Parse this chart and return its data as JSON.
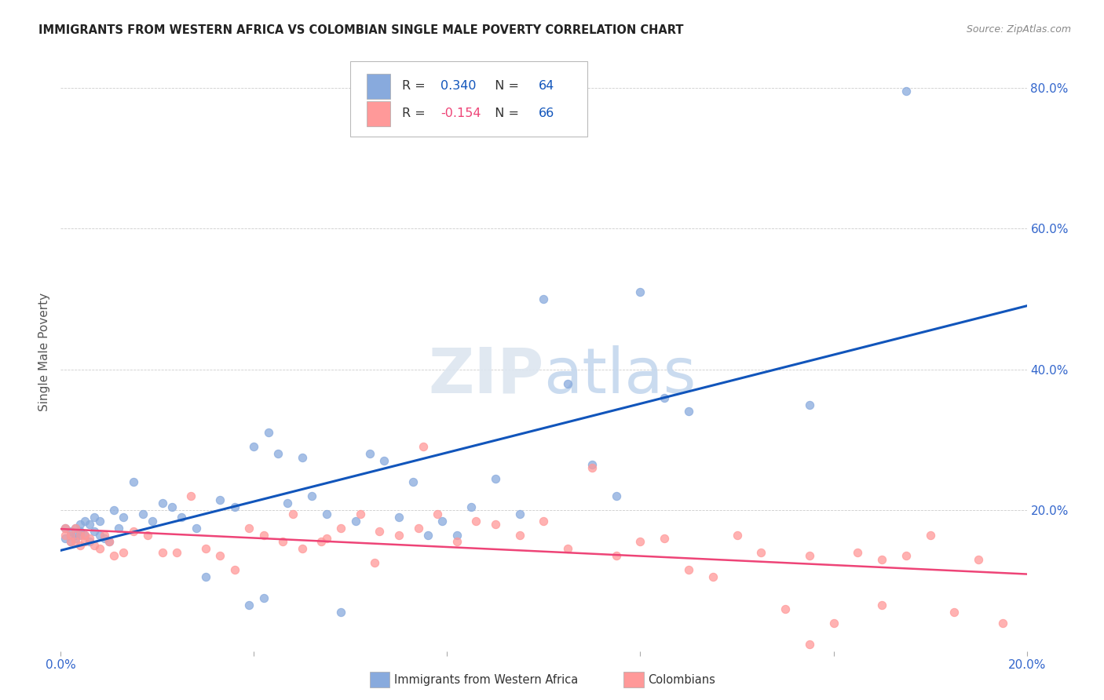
{
  "title": "IMMIGRANTS FROM WESTERN AFRICA VS COLOMBIAN SINGLE MALE POVERTY CORRELATION CHART",
  "source": "Source: ZipAtlas.com",
  "ylabel": "Single Male Poverty",
  "xlim": [
    0.0,
    0.2
  ],
  "ylim": [
    0.0,
    0.85
  ],
  "xticks": [
    0.0,
    0.04,
    0.08,
    0.12,
    0.16,
    0.2
  ],
  "yticks": [
    0.0,
    0.2,
    0.4,
    0.6,
    0.8
  ],
  "ytick_labels_right": [
    "",
    "20.0%",
    "40.0%",
    "60.0%",
    "80.0%"
  ],
  "xtick_labels": [
    "0.0%",
    "",
    "",
    "",
    "",
    "20.0%"
  ],
  "blue_R": 0.34,
  "blue_N": 64,
  "pink_R": -0.154,
  "pink_N": 66,
  "blue_color": "#88AADD",
  "pink_color": "#FF9999",
  "blue_line_color": "#1155BB",
  "pink_line_color": "#EE4477",
  "background_color": "#FFFFFF",
  "blue_x": [
    0.001,
    0.001,
    0.002,
    0.002,
    0.002,
    0.003,
    0.003,
    0.003,
    0.004,
    0.004,
    0.004,
    0.005,
    0.005,
    0.006,
    0.006,
    0.007,
    0.007,
    0.008,
    0.008,
    0.009,
    0.01,
    0.011,
    0.012,
    0.013,
    0.015,
    0.017,
    0.019,
    0.021,
    0.023,
    0.025,
    0.028,
    0.03,
    0.033,
    0.036,
    0.039,
    0.042,
    0.045,
    0.047,
    0.05,
    0.052,
    0.055,
    0.058,
    0.061,
    0.064,
    0.067,
    0.07,
    0.073,
    0.076,
    0.079,
    0.082,
    0.085,
    0.09,
    0.095,
    0.1,
    0.105,
    0.11,
    0.115,
    0.12,
    0.125,
    0.13,
    0.04,
    0.043,
    0.155,
    0.175
  ],
  "blue_y": [
    0.16,
    0.175,
    0.165,
    0.17,
    0.155,
    0.175,
    0.165,
    0.16,
    0.18,
    0.17,
    0.165,
    0.185,
    0.165,
    0.18,
    0.155,
    0.19,
    0.17,
    0.165,
    0.185,
    0.16,
    0.155,
    0.2,
    0.175,
    0.19,
    0.24,
    0.195,
    0.185,
    0.21,
    0.205,
    0.19,
    0.175,
    0.105,
    0.215,
    0.205,
    0.065,
    0.075,
    0.28,
    0.21,
    0.275,
    0.22,
    0.195,
    0.055,
    0.185,
    0.28,
    0.27,
    0.19,
    0.24,
    0.165,
    0.185,
    0.165,
    0.205,
    0.245,
    0.195,
    0.5,
    0.38,
    0.265,
    0.22,
    0.51,
    0.36,
    0.34,
    0.29,
    0.31,
    0.35,
    0.795
  ],
  "pink_x": [
    0.001,
    0.001,
    0.002,
    0.002,
    0.003,
    0.003,
    0.004,
    0.004,
    0.005,
    0.005,
    0.006,
    0.007,
    0.008,
    0.009,
    0.01,
    0.011,
    0.013,
    0.015,
    0.018,
    0.021,
    0.024,
    0.027,
    0.03,
    0.033,
    0.036,
    0.039,
    0.042,
    0.046,
    0.05,
    0.054,
    0.058,
    0.062,
    0.066,
    0.07,
    0.074,
    0.078,
    0.082,
    0.086,
    0.09,
    0.095,
    0.1,
    0.105,
    0.11,
    0.115,
    0.12,
    0.125,
    0.13,
    0.135,
    0.14,
    0.145,
    0.15,
    0.155,
    0.16,
    0.165,
    0.17,
    0.175,
    0.18,
    0.185,
    0.19,
    0.195,
    0.048,
    0.055,
    0.065,
    0.075,
    0.155,
    0.17
  ],
  "pink_y": [
    0.165,
    0.175,
    0.155,
    0.165,
    0.175,
    0.155,
    0.15,
    0.165,
    0.155,
    0.165,
    0.16,
    0.15,
    0.145,
    0.165,
    0.155,
    0.135,
    0.14,
    0.17,
    0.165,
    0.14,
    0.14,
    0.22,
    0.145,
    0.135,
    0.115,
    0.175,
    0.165,
    0.155,
    0.145,
    0.155,
    0.175,
    0.195,
    0.17,
    0.165,
    0.175,
    0.195,
    0.155,
    0.185,
    0.18,
    0.165,
    0.185,
    0.145,
    0.26,
    0.135,
    0.155,
    0.16,
    0.115,
    0.105,
    0.165,
    0.14,
    0.06,
    0.135,
    0.04,
    0.14,
    0.13,
    0.135,
    0.165,
    0.055,
    0.13,
    0.04,
    0.195,
    0.16,
    0.125,
    0.29,
    0.01,
    0.065
  ]
}
